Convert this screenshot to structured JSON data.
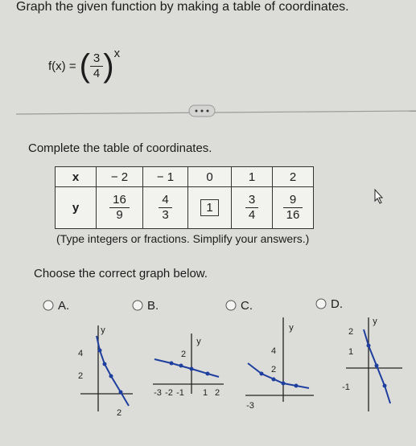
{
  "question": {
    "instruction": "Graph the given function by making a table of coordinates.",
    "function": {
      "lhs": "f(x) =",
      "numerator": "3",
      "denominator": "4",
      "exponent": "x"
    }
  },
  "table_prompt": "Complete the table of coordinates.",
  "table": {
    "headers": [
      "x",
      "− 2",
      "− 1",
      "0",
      "1",
      "2"
    ],
    "row_label": "y",
    "cells": [
      {
        "num": "16",
        "den": "9"
      },
      {
        "num": "4",
        "den": "3"
      },
      {
        "value": "1"
      },
      {
        "num": "3",
        "den": "4"
      },
      {
        "num": "9",
        "den": "16"
      }
    ]
  },
  "hint": "(Type integers or fractions. Simplify your answers.)",
  "graph_prompt": "Choose the correct graph below.",
  "options": [
    {
      "letter": "A.",
      "axis_labels": [
        "y",
        "4",
        "2",
        "2"
      ]
    },
    {
      "letter": "B.",
      "axis_labels": [
        "y",
        "2",
        "-3",
        "-2",
        "-1",
        "1",
        "2"
      ]
    },
    {
      "letter": "C.",
      "axis_labels": [
        "y",
        "4",
        "2",
        "-3"
      ]
    },
    {
      "letter": "D.",
      "axis_labels": [
        "y",
        "2",
        "1",
        "-1"
      ]
    }
  ]
}
